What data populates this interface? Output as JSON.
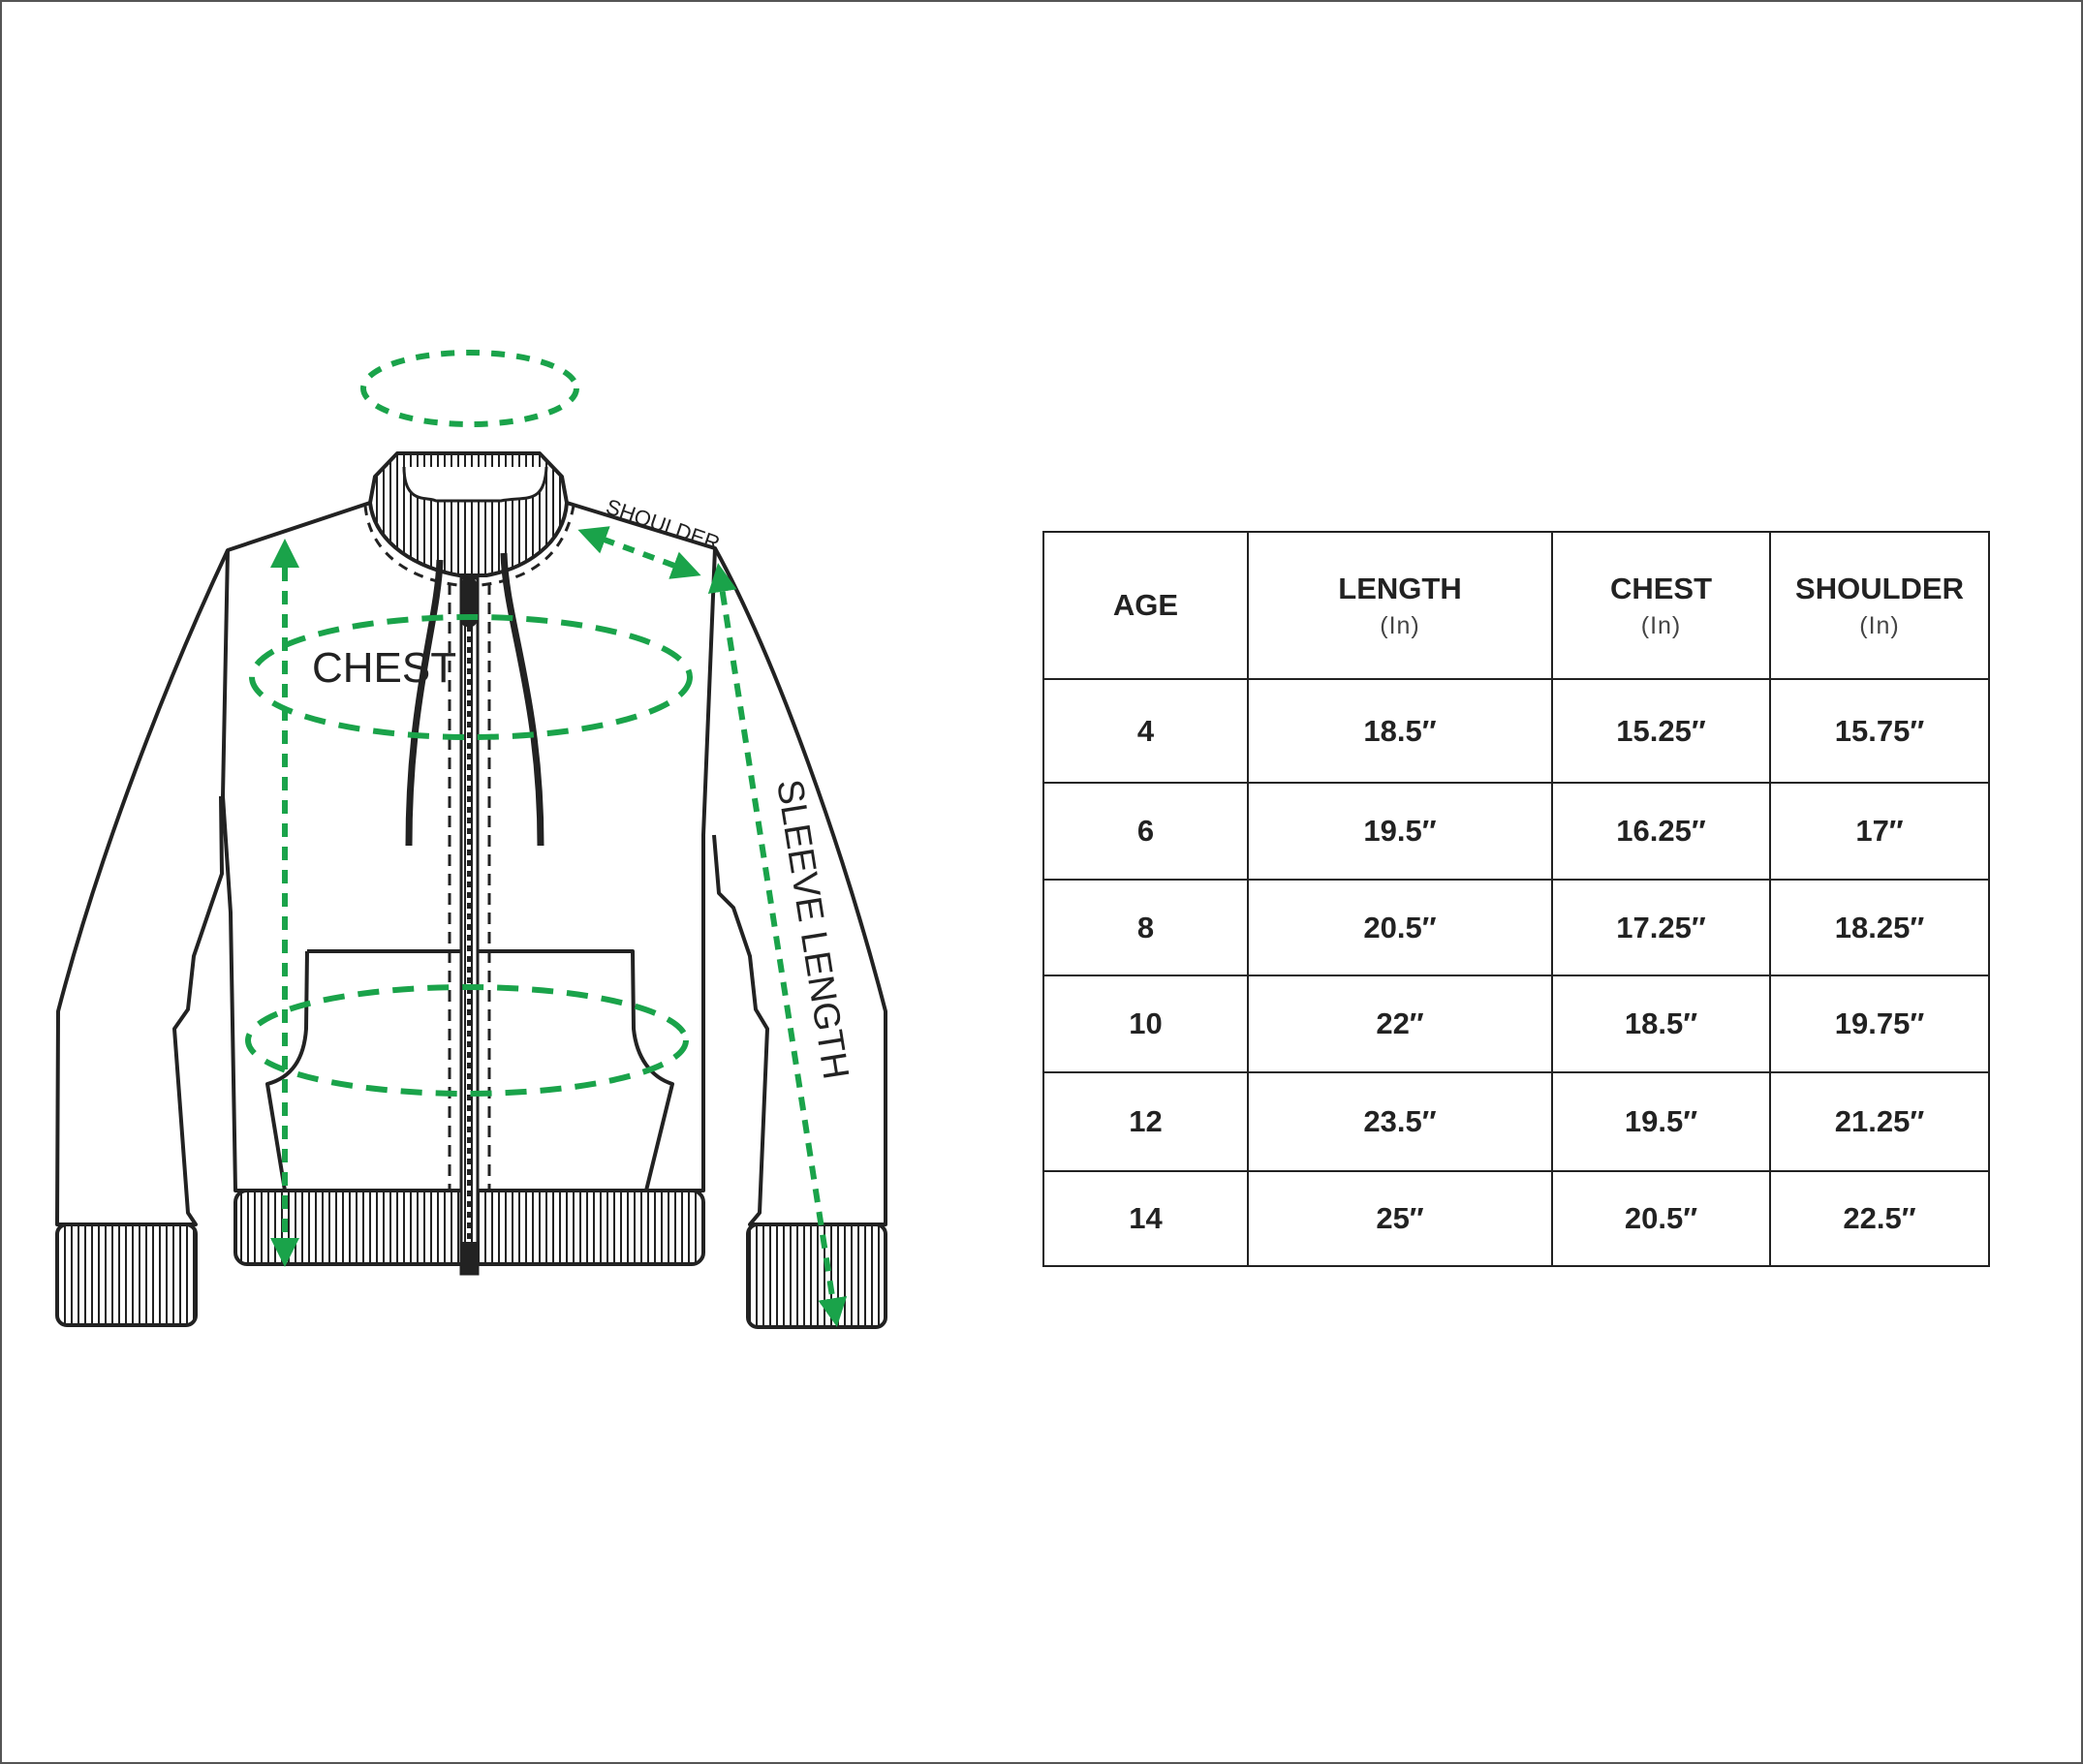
{
  "diagram": {
    "labels": {
      "chest": "CHEST",
      "shoulder": "SHOULDER",
      "sleeve_length": "SLEEVE LENGTH"
    },
    "colors": {
      "measure": "#1aa34a",
      "outline": "#222222"
    }
  },
  "table": {
    "headers": [
      {
        "label": "AGE",
        "unit": ""
      },
      {
        "label": "LENGTH",
        "unit": "(In)"
      },
      {
        "label": "CHEST",
        "unit": "(In)"
      },
      {
        "label": "SHOULDER",
        "unit": "(In)"
      }
    ],
    "rows": [
      [
        "4",
        "18.5″",
        "15.25″",
        "15.75″"
      ],
      [
        "6",
        "19.5″",
        "16.25″",
        "17″"
      ],
      [
        "8",
        "20.5″",
        "17.25″",
        "18.25″"
      ],
      [
        "10",
        "22″",
        "18.5″",
        "19.75″"
      ],
      [
        "12",
        "23.5″",
        "19.5″",
        "21.25″"
      ],
      [
        "14",
        "25″",
        "20.5″",
        "22.5″"
      ]
    ]
  }
}
